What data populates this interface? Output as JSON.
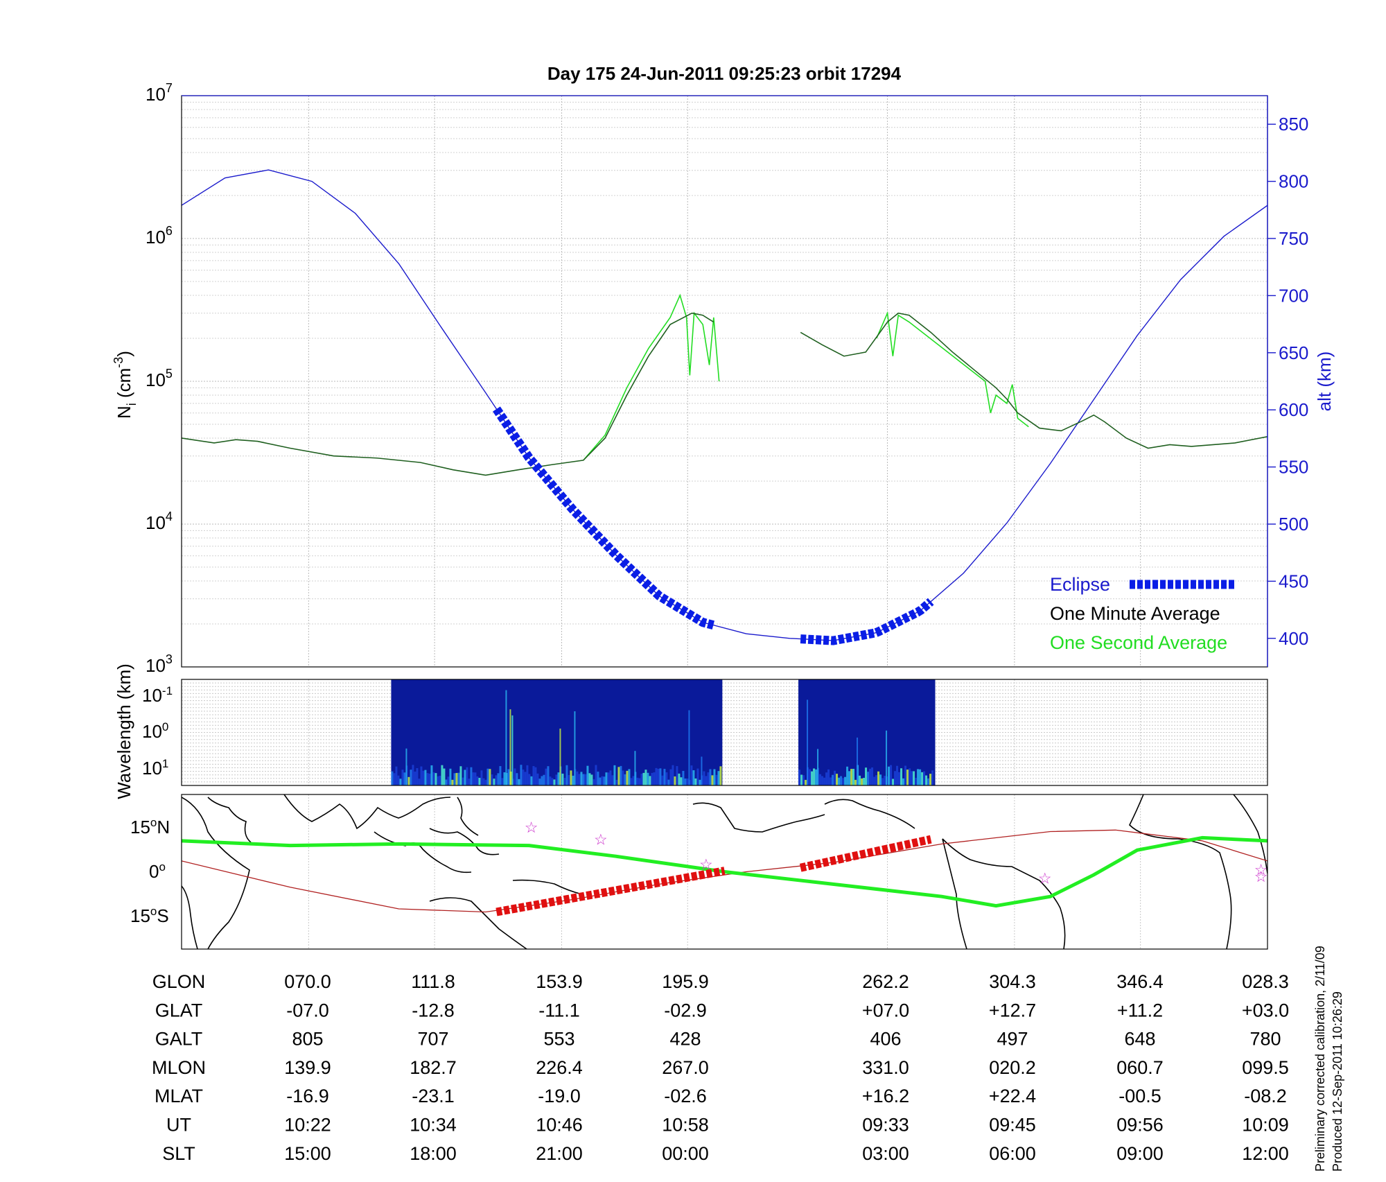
{
  "title": "Day 175  24-Jun-2011 09:25:23   orbit 17294",
  "colors": {
    "altitude": "#1a1acc",
    "eclipse": "#0a1ee6",
    "minute_avg": "#1f5f1f",
    "second_avg": "#22dd22",
    "track": "#22ee22",
    "track_eclipse": "#e01010",
    "mag_equator": "#b02020",
    "star": "#cc33cc",
    "spectrogram_bg": "#0a1a9a"
  },
  "panel_density": {
    "ylabel": "N",
    "ylabel_sub": "i",
    "ylabel_unit_open": " (cm",
    "ylabel_unit_exp": "-3",
    "ylabel_unit_close": ")",
    "y_ticks": [
      {
        "base": "10",
        "exp": "7"
      },
      {
        "base": "10",
        "exp": "6"
      },
      {
        "base": "10",
        "exp": "5"
      },
      {
        "base": "10",
        "exp": "4"
      },
      {
        "base": "10",
        "exp": "3"
      }
    ],
    "y2label": "alt (km)",
    "y2_ticks": [
      "850",
      "800",
      "750",
      "700",
      "650",
      "600",
      "550",
      "500",
      "450",
      "400"
    ],
    "legend": {
      "eclipse": "Eclipse",
      "minute": "One Minute Average",
      "second": "One Second Average"
    }
  },
  "panel_spectrogram": {
    "ylabel": "Wavelength (km)",
    "y_ticks": [
      {
        "base": "10",
        "exp": "-1"
      },
      {
        "base": "10",
        "exp": "0"
      },
      {
        "base": "10",
        "exp": "1"
      }
    ]
  },
  "panel_map": {
    "lat_ticks": [
      {
        "value": "15",
        "unit": "N"
      },
      {
        "value": "0",
        "unit": ""
      },
      {
        "value": "15",
        "unit": "S"
      }
    ],
    "degree_sign": "o"
  },
  "table": {
    "rows": [
      {
        "label": "GLON",
        "values": [
          "070.0",
          "111.8",
          "153.9",
          "195.9",
          "262.2",
          "304.3",
          "346.4",
          "028.3"
        ]
      },
      {
        "label": "GLAT",
        "values": [
          "-07.0",
          "-12.8",
          "-11.1",
          "-02.9",
          "+07.0",
          "+12.7",
          "+11.2",
          "+03.0"
        ]
      },
      {
        "label": "GALT",
        "values": [
          "805",
          "707",
          "553",
          "428",
          "406",
          "497",
          "648",
          "780"
        ]
      },
      {
        "label": "MLON",
        "values": [
          "139.9",
          "182.7",
          "226.4",
          "267.0",
          "331.0",
          "020.2",
          "060.7",
          "099.5"
        ]
      },
      {
        "label": "MLAT",
        "values": [
          "-16.9",
          "-23.1",
          "-19.0",
          "-02.6",
          "+16.2",
          "+22.4",
          "-00.5",
          "-08.2"
        ]
      },
      {
        "label": "UT",
        "values": [
          "10:22",
          "10:34",
          "10:46",
          "10:58",
          "09:33",
          "09:45",
          "09:56",
          "10:09"
        ]
      },
      {
        "label": "SLT",
        "values": [
          "15:00",
          "18:00",
          "21:00",
          "00:00",
          "03:00",
          "06:00",
          "09:00",
          "12:00"
        ]
      }
    ]
  },
  "footnote": {
    "line1": "Preliminary corrected calibration, 2/11/09",
    "line2": "Produced 12-Sep-2011 10:26:29"
  },
  "chart_data": [
    {
      "type": "line",
      "panel": "density",
      "yscale": "log",
      "ylim": [
        1000,
        10000000
      ],
      "y2lim": [
        375,
        875
      ],
      "x_fraction_range": [
        0,
        1
      ],
      "series": [
        {
          "name": "One Minute Average",
          "axis": "left",
          "segments": [
            [
              [
                0.0,
                40000
              ],
              [
                0.03,
                37000
              ],
              [
                0.05,
                39000
              ],
              [
                0.07,
                38000
              ],
              [
                0.1,
                34000
              ],
              [
                0.14,
                30000
              ],
              [
                0.18,
                29000
              ],
              [
                0.22,
                27000
              ],
              [
                0.25,
                24000
              ],
              [
                0.28,
                22000
              ],
              [
                0.31,
                24000
              ],
              [
                0.34,
                26000
              ],
              [
                0.37,
                28000
              ],
              [
                0.39,
                40000
              ],
              [
                0.41,
                80000
              ],
              [
                0.43,
                150000
              ],
              [
                0.45,
                250000
              ],
              [
                0.47,
                300000
              ],
              [
                0.48,
                290000
              ],
              [
                0.49,
                260000
              ]
            ],
            [
              [
                0.57,
                220000
              ],
              [
                0.59,
                180000
              ],
              [
                0.61,
                150000
              ],
              [
                0.63,
                160000
              ],
              [
                0.65,
                260000
              ],
              [
                0.66,
                300000
              ],
              [
                0.67,
                290000
              ],
              [
                0.69,
                220000
              ],
              [
                0.71,
                160000
              ],
              [
                0.73,
                120000
              ],
              [
                0.75,
                90000
              ],
              [
                0.76,
                75000
              ],
              [
                0.77,
                60000
              ],
              [
                0.79,
                47000
              ],
              [
                0.81,
                45000
              ],
              [
                0.83,
                53000
              ],
              [
                0.84,
                58000
              ],
              [
                0.85,
                52000
              ],
              [
                0.87,
                40000
              ],
              [
                0.89,
                34000
              ],
              [
                0.91,
                36000
              ],
              [
                0.93,
                35000
              ],
              [
                0.95,
                36000
              ],
              [
                0.97,
                37000
              ],
              [
                1.0,
                41000
              ]
            ]
          ]
        },
        {
          "name": "One Second Average",
          "axis": "left",
          "segments": [
            [
              [
                0.37,
                28000
              ],
              [
                0.39,
                42000
              ],
              [
                0.41,
                90000
              ],
              [
                0.43,
                170000
              ],
              [
                0.45,
                280000
              ],
              [
                0.459,
                400000
              ],
              [
                0.465,
                280000
              ],
              [
                0.468,
                110000
              ],
              [
                0.472,
                300000
              ],
              [
                0.48,
                250000
              ],
              [
                0.486,
                130000
              ],
              [
                0.49,
                280000
              ],
              [
                0.495,
                100000
              ]
            ],
            [
              [
                0.64,
                200000
              ],
              [
                0.65,
                300000
              ],
              [
                0.655,
                150000
              ],
              [
                0.66,
                290000
              ],
              [
                0.67,
                260000
              ],
              [
                0.74,
                100000
              ],
              [
                0.745,
                60000
              ],
              [
                0.75,
                80000
              ],
              [
                0.76,
                70000
              ],
              [
                0.765,
                95000
              ],
              [
                0.77,
                55000
              ],
              [
                0.78,
                48000
              ]
            ]
          ]
        },
        {
          "name": "altitude",
          "axis": "right",
          "values_km": [
            [
              0.0,
              779
            ],
            [
              0.04,
              803
            ],
            [
              0.08,
              810
            ],
            [
              0.12,
              800
            ],
            [
              0.16,
              772
            ],
            [
              0.2,
              728
            ],
            [
              0.24,
              671
            ],
            [
              0.28,
              615
            ],
            [
              0.32,
              558
            ],
            [
              0.36,
              513
            ],
            [
              0.4,
              473
            ],
            [
              0.44,
              437
            ],
            [
              0.48,
              414
            ],
            [
              0.52,
              404
            ],
            [
              0.56,
              400
            ],
            [
              0.6,
              398
            ],
            [
              0.64,
              405
            ],
            [
              0.68,
              424
            ],
            [
              0.72,
              457
            ],
            [
              0.76,
              501
            ],
            [
              0.8,
              553
            ],
            [
              0.84,
              609
            ],
            [
              0.88,
              665
            ],
            [
              0.92,
              714
            ],
            [
              0.96,
              752
            ],
            [
              1.0,
              779
            ]
          ]
        },
        {
          "name": "Eclipse",
          "axis": "right",
          "segments": [
            [
              [
                0.29,
                620
              ],
              [
                0.49,
                411
              ]
            ],
            [
              [
                0.57,
                406
              ],
              [
                0.69,
                430
              ]
            ]
          ]
        }
      ]
    },
    {
      "type": "heatmap",
      "panel": "spectrogram",
      "yscale": "log",
      "y_range": [
        0.05,
        20
      ],
      "data_intervals": [
        [
          0.193,
          0.498
        ],
        [
          0.568,
          0.694
        ]
      ]
    },
    {
      "type": "line",
      "panel": "ground track",
      "ylim": [
        -25,
        25
      ],
      "series": [
        {
          "name": "track",
          "points": [
            [
              0.0,
              10
            ],
            [
              0.1,
              8.5
            ],
            [
              0.2,
              9
            ],
            [
              0.32,
              8.5
            ],
            [
              0.4,
              5
            ],
            [
              0.5,
              0
            ],
            [
              0.6,
              -4
            ],
            [
              0.7,
              -8
            ],
            [
              0.75,
              -11
            ],
            [
              0.8,
              -8
            ],
            [
              0.84,
              -1
            ],
            [
              0.88,
              7
            ],
            [
              0.94,
              11
            ],
            [
              1.0,
              10
            ]
          ]
        },
        {
          "name": "track_eclipse",
          "segments": [
            [
              [
                0.29,
                -13
              ],
              [
                0.5,
                0.3
              ]
            ],
            [
              [
                0.57,
                1.3
              ],
              [
                0.69,
                10.5
              ]
            ]
          ]
        },
        {
          "name": "mag_equator",
          "points": [
            [
              0.0,
              3.5
            ],
            [
              0.1,
              -5
            ],
            [
              0.2,
              -12
            ],
            [
              0.28,
              -13
            ],
            [
              0.36,
              -9
            ],
            [
              0.44,
              -4
            ],
            [
              0.52,
              0
            ],
            [
              0.6,
              3
            ],
            [
              0.7,
              9
            ],
            [
              0.8,
              13
            ],
            [
              0.86,
              13.5
            ],
            [
              0.94,
              10
            ],
            [
              1.0,
              3.5
            ]
          ]
        }
      ],
      "stars": [
        [
          0.322,
          14.5
        ],
        [
          0.386,
          10.5
        ],
        [
          0.483,
          2.5
        ],
        [
          0.795,
          -2
        ],
        [
          0.994,
          0.8
        ],
        [
          0.994,
          -1.5
        ]
      ]
    }
  ]
}
